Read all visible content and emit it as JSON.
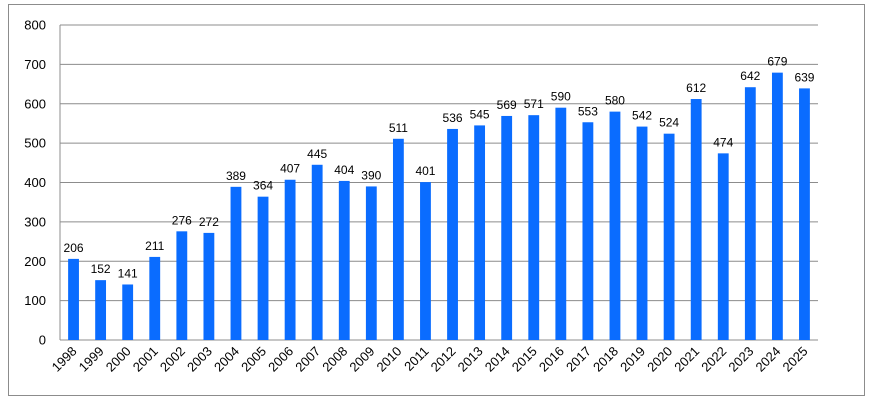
{
  "chart_data": {
    "type": "bar",
    "title": "",
    "xlabel": "",
    "ylabel": "",
    "categories": [
      "1998",
      "1999",
      "2000",
      "2001",
      "2002",
      "2003",
      "2004",
      "2005",
      "2006",
      "2007",
      "2008",
      "2009",
      "2010",
      "2011",
      "2012",
      "2013",
      "2014",
      "2015",
      "2016",
      "2017",
      "2018",
      "2019",
      "2020",
      "2021",
      "2022",
      "2023",
      "2024",
      "2025"
    ],
    "values": [
      206,
      152,
      141,
      211,
      276,
      272,
      389,
      364,
      407,
      445,
      404,
      390,
      511,
      401,
      536,
      545,
      569,
      571,
      590,
      553,
      580,
      542,
      524,
      612,
      474,
      642,
      679,
      639
    ],
    "ylim": [
      0,
      800
    ],
    "yticks": [
      "0",
      "100",
      "200",
      "300",
      "400",
      "500",
      "600",
      "700",
      "800"
    ],
    "grid": true,
    "legend": "none",
    "bar_color": "#0a6cff",
    "gridline_color": "#8c8c8c"
  }
}
